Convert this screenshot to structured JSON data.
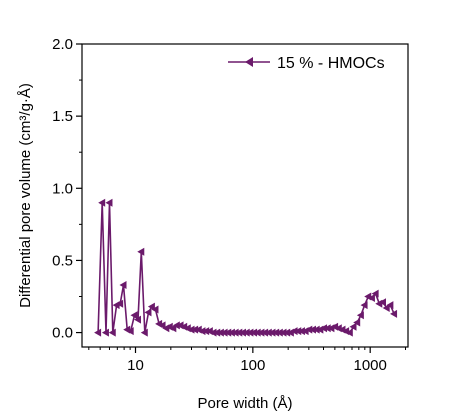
{
  "chart_data": {
    "type": "line",
    "title": "",
    "xlabel": "Pore width (Å)",
    "ylabel": "Differential pore volume (cm³/g·Å)",
    "xscale": "log",
    "xlim": [
      3.5,
      2100
    ],
    "ylim": [
      -0.1,
      2.0
    ],
    "x_tick_labels": [
      "10",
      "100",
      "1000"
    ],
    "x_ticks": [
      10,
      100,
      1000
    ],
    "y_ticks": [
      0.0,
      0.5,
      1.0,
      1.5,
      2.0
    ],
    "y_tick_labels": [
      "0.0",
      "0.5",
      "1.0",
      "1.5",
      "2.0"
    ],
    "grid": false,
    "legend_placement": "top-right",
    "marker": "left-triangle",
    "series": [
      {
        "name": "15 % - HMOCs",
        "color": "#6b1a6b",
        "x": [
          4.8,
          5.2,
          5.6,
          6.0,
          6.4,
          6.9,
          7.4,
          7.9,
          8.5,
          9.1,
          9.8,
          10.5,
          11.2,
          12.0,
          12.9,
          13.8,
          14.8,
          15.9,
          17,
          18.3,
          19.6,
          21,
          22.5,
          24.2,
          26,
          27.9,
          30,
          32.2,
          34.6,
          37.2,
          40,
          43,
          46.2,
          49.7,
          53.4,
          57.4,
          61.7,
          66.3,
          71.3,
          76.7,
          82.4,
          88.6,
          95.3,
          102.4,
          110,
          118.3,
          127.2,
          136.7,
          147,
          158,
          169.8,
          182.5,
          196.2,
          210.9,
          226.7,
          243.7,
          262,
          281.6,
          302.7,
          325.4,
          349.8,
          376,
          404.2,
          434.5,
          467.1,
          502.1,
          539.8,
          580.3,
          623.8,
          670.6,
          720.9,
          775,
          833.1,
          895.6,
          962.8,
          1035,
          1112.6,
          1196,
          1285.7,
          1382.1,
          1485.8,
          1597.2
        ],
        "y": [
          0.0,
          0.9,
          0.0,
          0.9,
          0.0,
          0.19,
          0.2,
          0.33,
          0.02,
          0.01,
          0.12,
          0.09,
          0.56,
          0.0,
          0.14,
          0.18,
          0.16,
          0.06,
          0.05,
          0.03,
          0.04,
          0.03,
          0.05,
          0.05,
          0.04,
          0.03,
          0.02,
          0.02,
          0.02,
          0.01,
          0.01,
          0.01,
          0.0,
          0.0,
          0.0,
          0.0,
          0.0,
          0.0,
          0.0,
          0.0,
          0.0,
          0.0,
          0.0,
          0.0,
          0.0,
          0.0,
          0.0,
          0.0,
          0.0,
          0.0,
          0.0,
          0.0,
          0.0,
          0.0,
          0.01,
          0.01,
          0.01,
          0.01,
          0.02,
          0.02,
          0.02,
          0.02,
          0.03,
          0.03,
          0.03,
          0.04,
          0.03,
          0.02,
          0.01,
          0.0,
          0.04,
          0.07,
          0.12,
          0.19,
          0.25,
          0.24,
          0.27,
          0.2,
          0.21,
          0.17,
          0.19,
          0.13
        ]
      }
    ]
  }
}
